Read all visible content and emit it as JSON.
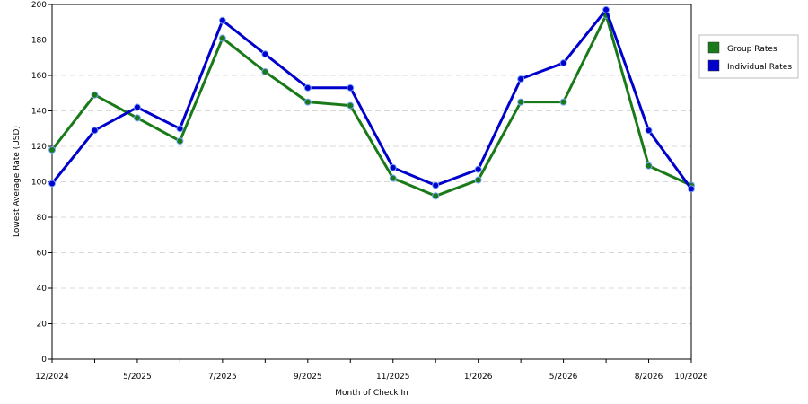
{
  "chart_data": {
    "type": "line",
    "xlabel": "Month of Check In",
    "ylabel": "Lowest Average Rate (USD)",
    "ylim": [
      0,
      200
    ],
    "yticks": [
      0,
      20,
      40,
      60,
      80,
      100,
      120,
      140,
      160,
      180,
      200
    ],
    "grid": "horizontal dashed",
    "legend_position": "right",
    "x_tick_labels": [
      "12/2024",
      "5/2025",
      "7/2025",
      "9/2025",
      "11/2025",
      "1/2026",
      "5/2026",
      "8/2026",
      "10/2026"
    ],
    "x_tick_index": [
      0,
      2,
      4,
      6,
      8,
      10,
      12,
      14,
      15
    ],
    "x_count": 16,
    "series": [
      {
        "name": "Group Rates",
        "color": "#1a7a1a",
        "values": [
          118,
          149,
          136,
          123,
          181,
          162,
          145,
          143,
          102,
          92,
          101,
          145,
          145,
          194,
          109,
          98
        ]
      },
      {
        "name": "Individual Rates",
        "color": "#0000cc",
        "values": [
          99,
          129,
          142,
          130,
          191,
          172,
          153,
          153,
          108,
          98,
          107,
          158,
          167,
          197,
          129,
          96
        ]
      }
    ]
  }
}
